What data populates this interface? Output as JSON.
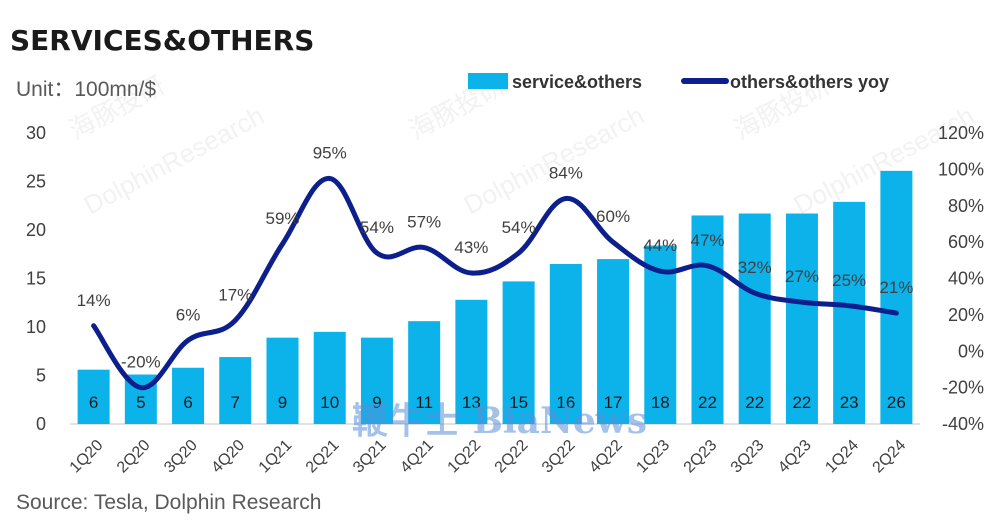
{
  "title": "SERVICES&OTHERS",
  "unit": "Unit：100mn/$",
  "source": "Source: Tesla, Dolphin Research",
  "watermark": "DolphinResearch",
  "watermark_cn": "海豚投研",
  "watermark_bottom": "鞭牛士 BiaNews",
  "colors": {
    "bar": "#0cb2ea",
    "line": "#0c1f8c",
    "axis": "#d9d9d9"
  },
  "chart_data": {
    "type": "bar",
    "categories": [
      "1Q20",
      "2Q20",
      "3Q20",
      "4Q20",
      "1Q21",
      "2Q21",
      "3Q21",
      "4Q21",
      "1Q22",
      "2Q22",
      "3Q22",
      "4Q22",
      "1Q23",
      "2Q23",
      "3Q23",
      "4Q23",
      "1Q24",
      "2Q24"
    ],
    "series": [
      {
        "name": "service&others",
        "type": "bar",
        "axis": "left",
        "values": [
          5.6,
          5.1,
          5.8,
          6.9,
          8.9,
          9.5,
          8.9,
          10.6,
          12.8,
          14.7,
          16.5,
          17.0,
          18.4,
          21.5,
          21.7,
          21.7,
          22.9,
          26.1
        ],
        "labels": [
          "6",
          "5",
          "6",
          "7",
          "9",
          "10",
          "9",
          "11",
          "13",
          "15",
          "16",
          "17",
          "18",
          "22",
          "22",
          "22",
          "23",
          "26"
        ]
      },
      {
        "name": "others&others yoy",
        "type": "line",
        "axis": "right",
        "values": [
          14,
          -20,
          6,
          17,
          59,
          95,
          54,
          57,
          43,
          54,
          84,
          60,
          44,
          47,
          32,
          27,
          25,
          21
        ],
        "labels": [
          "14%",
          "-20%",
          "6%",
          "17%",
          "59%",
          "95%",
          "54%",
          "57%",
          "43%",
          "54%",
          "84%",
          "60%",
          "44%",
          "47%",
          "32%",
          "27%",
          "25%",
          "21%"
        ]
      }
    ],
    "left_axis": {
      "min": 0,
      "max": 30,
      "ticks": [
        "0",
        "5",
        "10",
        "15",
        "20",
        "25",
        "30"
      ]
    },
    "right_axis": {
      "min": -40,
      "max": 120,
      "ticks": [
        "-40%",
        "-20%",
        "0%",
        "20%",
        "40%",
        "60%",
        "80%",
        "100%",
        "120%"
      ]
    },
    "legend_position": "top-right",
    "grid": false
  }
}
